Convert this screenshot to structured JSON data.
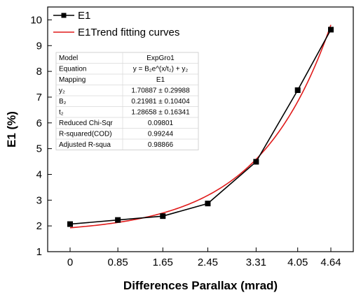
{
  "chart_data": {
    "type": "line",
    "xlabel": "Differences Parallax (mrad)",
    "ylabel": "E1 (%)",
    "categories": [
      "0",
      "0.85",
      "1.65",
      "2.45",
      "3.31",
      "4.05",
      "4.64"
    ],
    "x": [
      0,
      0.85,
      1.65,
      2.45,
      3.31,
      4.05,
      4.64
    ],
    "ylim": [
      1,
      10.5
    ],
    "yticks": [
      1,
      2,
      3,
      4,
      5,
      6,
      7,
      8,
      9,
      10
    ],
    "series": [
      {
        "name": "E1",
        "values": [
          2.07,
          2.23,
          2.38,
          2.87,
          4.49,
          7.27,
          9.62
        ],
        "color": "#000000",
        "marker": "square"
      },
      {
        "name": "E1Trend fitting curves",
        "model": "exponential: y = B2*exp(x/t2) + y2",
        "params": {
          "y2": 1.70887,
          "B2": 0.21981,
          "t2": 1.28658
        },
        "color": "#e01a1a"
      }
    ],
    "legend_position": "top-left",
    "grid": false,
    "fit_table": {
      "rows": [
        {
          "label": "Model",
          "value": "ExpGro1"
        },
        {
          "label": "Equation",
          "value": "y = B₂e^(x/t₂) + y₂"
        },
        {
          "label": "Mapping",
          "value": "E1"
        },
        {
          "label": "y₂",
          "value": "1.70887 ± 0.29988"
        },
        {
          "label": "B₂",
          "value": "0.21981 ± 0.10404"
        },
        {
          "label": "t₂",
          "value": "1.28658 ± 0.16341"
        },
        {
          "label": "Reduced Chi-Sqr",
          "value": "0.09801"
        },
        {
          "label": "R-squared(COD)",
          "value": "0.99244"
        },
        {
          "label": "Adjusted R-squa",
          "value": "0.98866"
        }
      ]
    }
  }
}
